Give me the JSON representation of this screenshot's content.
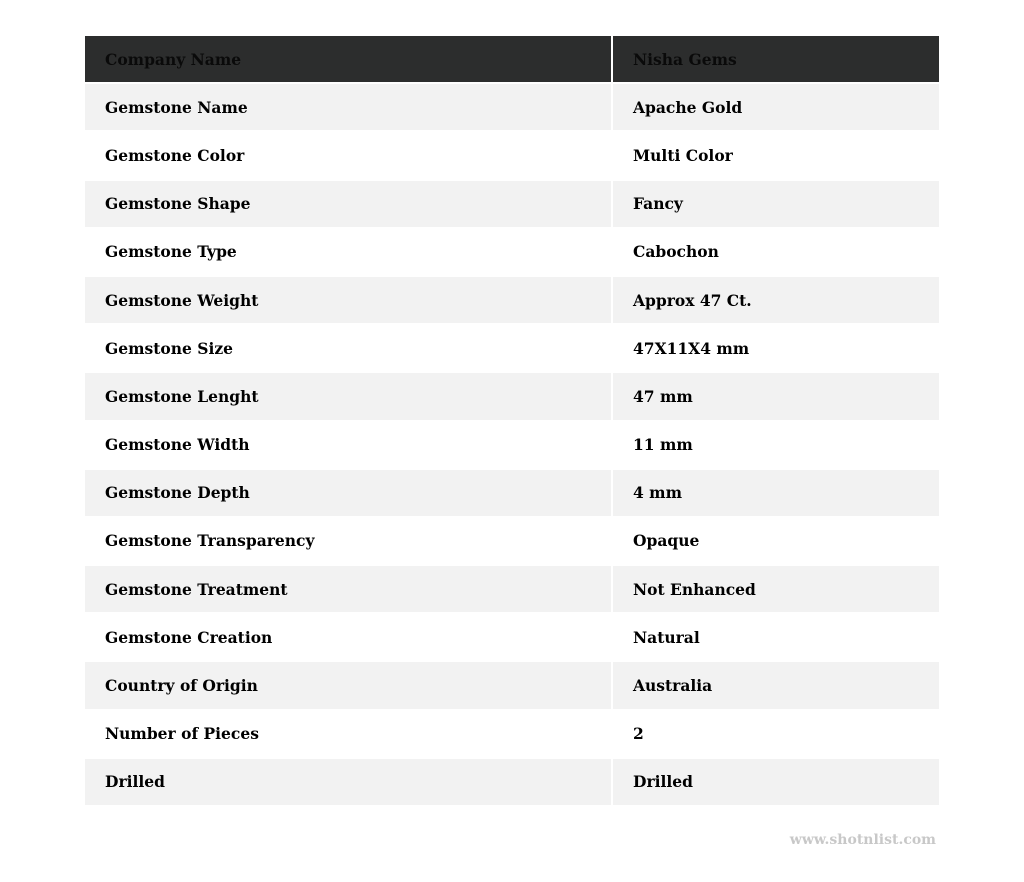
{
  "table": {
    "header": {
      "label": "Company Name",
      "value": "Nisha Gems"
    },
    "rows": [
      {
        "label": "Gemstone Name",
        "value": "Apache Gold"
      },
      {
        "label": "Gemstone Color",
        "value": "Multi Color"
      },
      {
        "label": "Gemstone Shape",
        "value": "Fancy"
      },
      {
        "label": "Gemstone Type",
        "value": "Cabochon"
      },
      {
        "label": "Gemstone Weight",
        "value": "Approx 47 Ct."
      },
      {
        "label": "Gemstone Size",
        "value": "47X11X4 mm"
      },
      {
        "label": "Gemstone Lenght",
        "value": "47 mm"
      },
      {
        "label": "Gemstone Width",
        "value": "11 mm"
      },
      {
        "label": "Gemstone Depth",
        "value": "4 mm"
      },
      {
        "label": "Gemstone Transparency",
        "value": "Opaque"
      },
      {
        "label": "Gemstone Treatment",
        "value": "Not Enhanced"
      },
      {
        "label": "Gemstone Creation",
        "value": "Natural"
      },
      {
        "label": "Country of Origin",
        "value": "Australia"
      },
      {
        "label": "Number of Pieces",
        "value": "2"
      },
      {
        "label": "Drilled",
        "value": "Drilled"
      }
    ]
  },
  "watermark": "www.shotnlist.com",
  "colors": {
    "header_bg": "#2c2d2d",
    "stripe_bg": "#f2f2f2",
    "watermark": "#c8c8c8"
  }
}
